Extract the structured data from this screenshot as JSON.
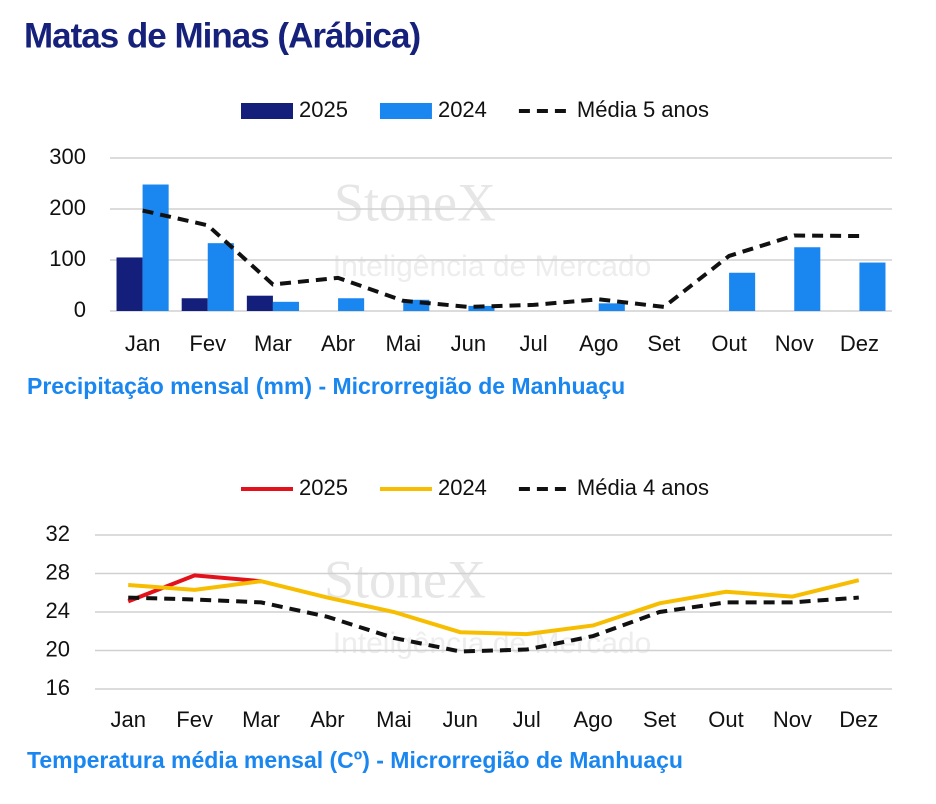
{
  "title": "Matas de Minas (Arábica)",
  "watermark": {
    "brand": "StoneX",
    "tagline": "Inteligência de Mercado"
  },
  "chart_data": [
    {
      "type": "bar",
      "caption": "Precipitação mensal (mm) - Microrregião de Manhuaçu",
      "categories": [
        "Jan",
        "Fev",
        "Mar",
        "Abr",
        "Mai",
        "Jun",
        "Jul",
        "Ago",
        "Set",
        "Out",
        "Nov",
        "Dez"
      ],
      "series": [
        {
          "name": "2025",
          "color": "#131f7a",
          "values": [
            105,
            25,
            30,
            null,
            null,
            null,
            null,
            null,
            null,
            null,
            null,
            null
          ]
        },
        {
          "name": "2024",
          "color": "#1a86f0",
          "values": [
            248,
            133,
            18,
            25,
            22,
            10,
            null,
            15,
            null,
            75,
            125,
            95
          ]
        },
        {
          "name": "Média 5 anos",
          "type": "line",
          "dash": true,
          "color": "#111111",
          "values": [
            197,
            168,
            52,
            65,
            20,
            8,
            12,
            23,
            8,
            108,
            148,
            147
          ]
        }
      ],
      "ylim": [
        0,
        300
      ],
      "yticks": [
        0,
        100,
        200,
        300
      ],
      "grid": true
    },
    {
      "type": "line",
      "caption": "Temperatura média mensal (Cº) - Microrregião de Manhuaçu",
      "categories": [
        "Jan",
        "Fev",
        "Mar",
        "Abr",
        "Mai",
        "Jun",
        "Jul",
        "Ago",
        "Set",
        "Out",
        "Nov",
        "Dez"
      ],
      "series": [
        {
          "name": "2025",
          "color": "#e3111b",
          "values": [
            25.1,
            27.8,
            27.2,
            null,
            null,
            null,
            null,
            null,
            null,
            null,
            null,
            null
          ]
        },
        {
          "name": "2024",
          "color": "#f7bd00",
          "values": [
            26.8,
            26.3,
            27.2,
            25.5,
            24,
            21.9,
            21.7,
            22.6,
            24.9,
            26.1,
            25.6,
            27.3
          ]
        },
        {
          "name": "Média 4 anos",
          "dash": true,
          "color": "#111111",
          "values": [
            25.5,
            25.3,
            25,
            23.5,
            21.3,
            19.9,
            20.1,
            21.5,
            24,
            25,
            25,
            25.5
          ]
        }
      ],
      "ylim": [
        16,
        32
      ],
      "yticks": [
        16,
        20,
        24,
        28,
        32
      ],
      "grid": true
    }
  ]
}
